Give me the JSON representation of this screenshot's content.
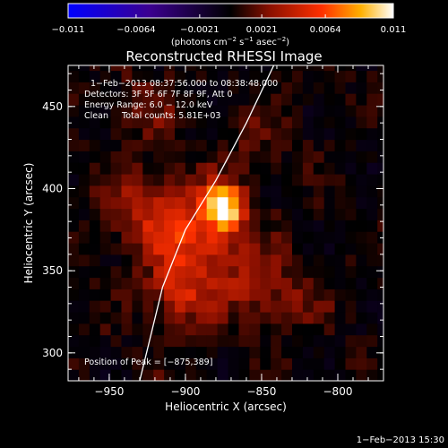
{
  "chart_data": {
    "type": "heatmap",
    "title": "Reconstructed RHESSI Image",
    "xlabel": "Heliocentric X (arcsec)",
    "ylabel": "Heliocentric Y (arcsec)",
    "xlim": [
      -977,
      -770
    ],
    "ylim": [
      283,
      475
    ],
    "x_ticks": [
      {
        "value": -950,
        "label": "−950"
      },
      {
        "value": -900,
        "label": "−900"
      },
      {
        "value": -850,
        "label": "−850"
      },
      {
        "value": -800,
        "label": "−800"
      }
    ],
    "y_ticks": [
      {
        "value": 300,
        "label": "300"
      },
      {
        "value": 350,
        "label": "350"
      },
      {
        "value": 400,
        "label": "400"
      },
      {
        "value": 450,
        "label": "450"
      }
    ],
    "colorbar": {
      "range": [
        -0.011,
        0.011
      ],
      "ticks": [
        {
          "value": -0.011,
          "label": "−0.011"
        },
        {
          "value": -0.0064,
          "label": "−0.0064"
        },
        {
          "value": -0.0021,
          "label": "−0.0021"
        },
        {
          "value": 0.0021,
          "label": "0.0021"
        },
        {
          "value": 0.0064,
          "label": "0.0064"
        },
        {
          "value": 0.011,
          "label": "0.011"
        }
      ],
      "unit_parts": [
        "(photons cm",
        "−2",
        " s",
        "−1",
        " asec",
        "−2",
        ")"
      ]
    },
    "annotations": {
      "time_range": "1−Feb−2013 08:37:56.000 to 08:38:48.000",
      "detectors": "Detectors: 3F 5F 6F 7F 8F 9F, Att 0",
      "energy": "Energy Range: 6.0 − 12.0 keV",
      "clean": "Clean     Total counts: 5.81E+03",
      "peak": "Position of Peak = [−875,389]"
    },
    "peak": {
      "x": -875,
      "y": 389
    },
    "emission_sources": [
      {
        "x": -875,
        "y": 389,
        "sigma": 9,
        "amp": 0.011
      },
      {
        "x": -893,
        "y": 368,
        "sigma": 20,
        "amp": 0.005
      },
      {
        "x": -925,
        "y": 390,
        "sigma": 18,
        "amp": 0.0035
      },
      {
        "x": -905,
        "y": 335,
        "sigma": 14,
        "amp": 0.0035
      },
      {
        "x": -858,
        "y": 340,
        "sigma": 16,
        "amp": 0.0025
      },
      {
        "x": -930,
        "y": 450,
        "sigma": 14,
        "amp": 0.002
      },
      {
        "x": -830,
        "y": 335,
        "sigma": 16,
        "amp": 0.0018
      },
      {
        "x": -855,
        "y": 425,
        "sigma": 15,
        "amp": 0.0016
      }
    ],
    "limb_curve": [
      [
        -930,
        283
      ],
      [
        -915,
        340
      ],
      [
        -900,
        375
      ],
      [
        -880,
        405
      ],
      [
        -860,
        440
      ],
      [
        -842,
        475
      ]
    ],
    "footer_date": "1−Feb−2013 15:30"
  }
}
